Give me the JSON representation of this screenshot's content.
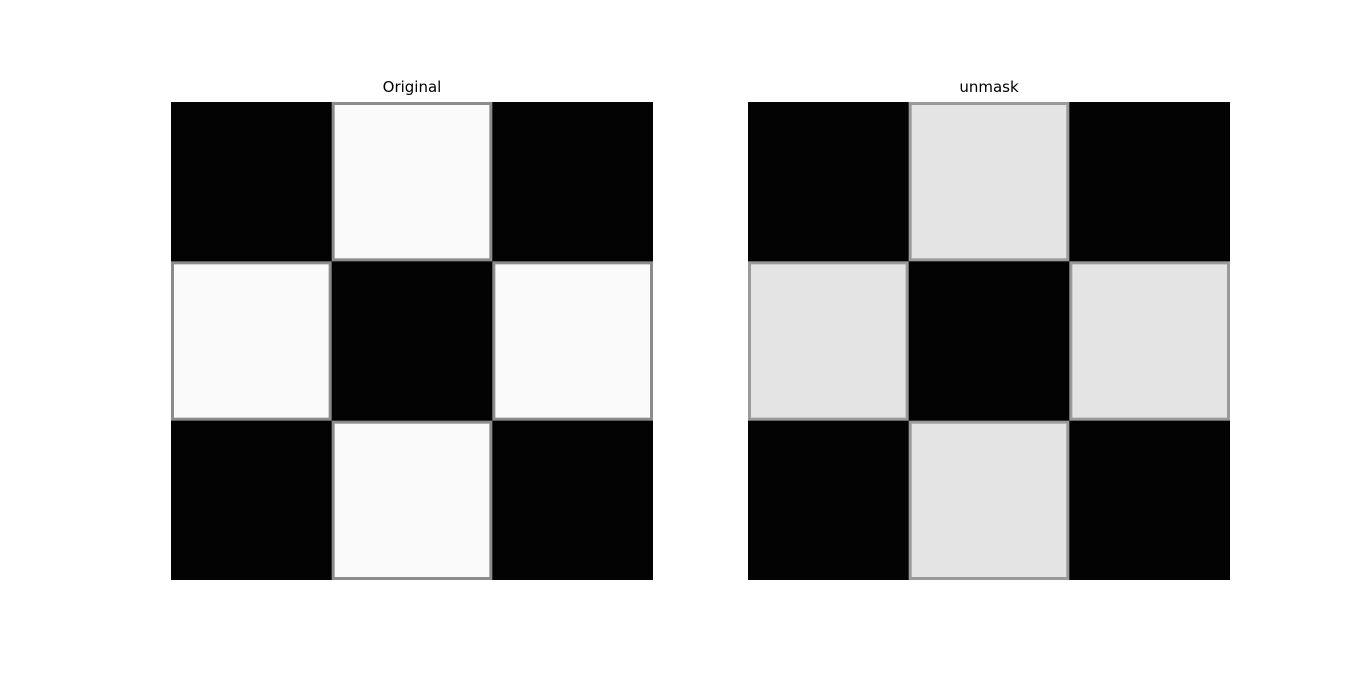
{
  "figure": {
    "panels": [
      {
        "title": "Original",
        "grid": [
          [
            0,
            1,
            0
          ],
          [
            1,
            0,
            1
          ],
          [
            0,
            1,
            0
          ]
        ],
        "dark_color": "#030303",
        "light_color": "#fafafa",
        "edge_color": "#8c8c8c"
      },
      {
        "title": "unmask",
        "grid": [
          [
            0,
            1,
            0
          ],
          [
            1,
            0,
            1
          ],
          [
            0,
            1,
            0
          ]
        ],
        "dark_color": "#030303",
        "light_color": "#e4e4e4",
        "edge_color": "#9a9a9a"
      }
    ]
  }
}
